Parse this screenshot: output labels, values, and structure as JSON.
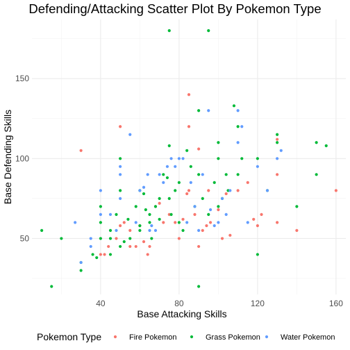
{
  "chart_data": {
    "type": "scatter",
    "title": "Defending/Attacking Scatter Plot By Pokemon Type",
    "xlabel": "Base Attacking Skills",
    "ylabel": "Base Defending Skills",
    "xlim": [
      5,
      165
    ],
    "ylim": [
      15,
      187
    ],
    "x_ticks": [
      40,
      80,
      120,
      160
    ],
    "y_ticks": [
      50,
      100,
      150
    ],
    "grid": true,
    "legend": {
      "title": "Pokemon Type",
      "position": "bottom"
    },
    "series": [
      {
        "name": "Fire Pokemon",
        "color": "#F8766D",
        "points": [
          [
            30,
            105
          ],
          [
            40,
            40
          ],
          [
            42,
            40
          ],
          [
            44,
            45
          ],
          [
            48,
            50
          ],
          [
            50,
            120
          ],
          [
            50,
            58
          ],
          [
            52,
            60
          ],
          [
            55,
            55
          ],
          [
            55,
            45
          ],
          [
            58,
            45
          ],
          [
            60,
            58
          ],
          [
            62,
            48
          ],
          [
            64,
            40
          ],
          [
            65,
            45
          ],
          [
            68,
            70
          ],
          [
            70,
            72
          ],
          [
            72,
            60
          ],
          [
            75,
            65
          ],
          [
            78,
            60
          ],
          [
            80,
            50
          ],
          [
            82,
            62
          ],
          [
            84,
            78
          ],
          [
            85,
            140
          ],
          [
            85,
            80
          ],
          [
            85,
            120
          ],
          [
            88,
            65
          ],
          [
            90,
            106
          ],
          [
            90,
            45
          ],
          [
            92,
            55
          ],
          [
            94,
            58
          ],
          [
            95,
            80
          ],
          [
            96,
            60
          ],
          [
            100,
            68
          ],
          [
            102,
            50
          ],
          [
            104,
            78
          ],
          [
            106,
            52
          ],
          [
            110,
            80
          ],
          [
            115,
            85
          ],
          [
            118,
            62
          ],
          [
            120,
            58
          ],
          [
            122,
            65
          ],
          [
            130,
            112
          ],
          [
            130,
            90
          ],
          [
            130,
            60
          ],
          [
            140,
            55
          ],
          [
            160,
            80
          ]
        ]
      },
      {
        "name": "Grass Pokemon",
        "color": "#00BA38",
        "points": [
          [
            10,
            55
          ],
          [
            15,
            20
          ],
          [
            20,
            50
          ],
          [
            30,
            35
          ],
          [
            30,
            30
          ],
          [
            36,
            40
          ],
          [
            38,
            38
          ],
          [
            40,
            60
          ],
          [
            40,
            70
          ],
          [
            40,
            50
          ],
          [
            45,
            55
          ],
          [
            45,
            50
          ],
          [
            45,
            40
          ],
          [
            48,
            65
          ],
          [
            50,
            100
          ],
          [
            50,
            80
          ],
          [
            50,
            45
          ],
          [
            52,
            48
          ],
          [
            54,
            62
          ],
          [
            55,
            50
          ],
          [
            58,
            70
          ],
          [
            60,
            80
          ],
          [
            60,
            58
          ],
          [
            60,
            55
          ],
          [
            62,
            78
          ],
          [
            63,
            68
          ],
          [
            65,
            65
          ],
          [
            65,
            60
          ],
          [
            66,
            50
          ],
          [
            68,
            70
          ],
          [
            70,
            75
          ],
          [
            70,
            62
          ],
          [
            72,
            90
          ],
          [
            74,
            88
          ],
          [
            75,
            180
          ],
          [
            75,
            108
          ],
          [
            75,
            75
          ],
          [
            76,
            65
          ],
          [
            78,
            80
          ],
          [
            80,
            85
          ],
          [
            80,
            60
          ],
          [
            82,
            55
          ],
          [
            84,
            105
          ],
          [
            86,
            95
          ],
          [
            88,
            70
          ],
          [
            90,
            130
          ],
          [
            90,
            20
          ],
          [
            90,
            90
          ],
          [
            92,
            75
          ],
          [
            95,
            180
          ],
          [
            95,
            65
          ],
          [
            98,
            85
          ],
          [
            100,
            110
          ],
          [
            100,
            100
          ],
          [
            100,
            70
          ],
          [
            102,
            75
          ],
          [
            104,
            90
          ],
          [
            105,
            80
          ],
          [
            108,
            133
          ],
          [
            110,
            120
          ],
          [
            110,
            90
          ],
          [
            112,
            100
          ],
          [
            120,
            100
          ],
          [
            120,
            40
          ],
          [
            125,
            80
          ],
          [
            130,
            115
          ],
          [
            130,
            110
          ],
          [
            140,
            70
          ],
          [
            150,
            110
          ],
          [
            150,
            90
          ],
          [
            155,
            108
          ]
        ]
      },
      {
        "name": "Water Pokemon",
        "color": "#619CFF",
        "points": [
          [
            27,
            60
          ],
          [
            30,
            35
          ],
          [
            35,
            50
          ],
          [
            35,
            45
          ],
          [
            40,
            80
          ],
          [
            40,
            65
          ],
          [
            45,
            65
          ],
          [
            48,
            55
          ],
          [
            50,
            95
          ],
          [
            50,
            90
          ],
          [
            50,
            75
          ],
          [
            55,
            115
          ],
          [
            58,
            60
          ],
          [
            60,
            80
          ],
          [
            62,
            82
          ],
          [
            64,
            90
          ],
          [
            65,
            55
          ],
          [
            66,
            58
          ],
          [
            68,
            55
          ],
          [
            70,
            90
          ],
          [
            72,
            85
          ],
          [
            74,
            95
          ],
          [
            76,
            100
          ],
          [
            78,
            95
          ],
          [
            80,
            100
          ],
          [
            82,
            100
          ],
          [
            84,
            60
          ],
          [
            86,
            85
          ],
          [
            88,
            70
          ],
          [
            90,
            55
          ],
          [
            92,
            90
          ],
          [
            95,
            130
          ],
          [
            96,
            68
          ],
          [
            98,
            58
          ],
          [
            100,
            60
          ],
          [
            102,
            75
          ],
          [
            104,
            65
          ],
          [
            106,
            80
          ],
          [
            110,
            130
          ],
          [
            110,
            110
          ],
          [
            112,
            120
          ],
          [
            115,
            60
          ],
          [
            120,
            95
          ],
          [
            125,
            80
          ],
          [
            130,
            100
          ],
          [
            132,
            105
          ]
        ]
      }
    ]
  }
}
